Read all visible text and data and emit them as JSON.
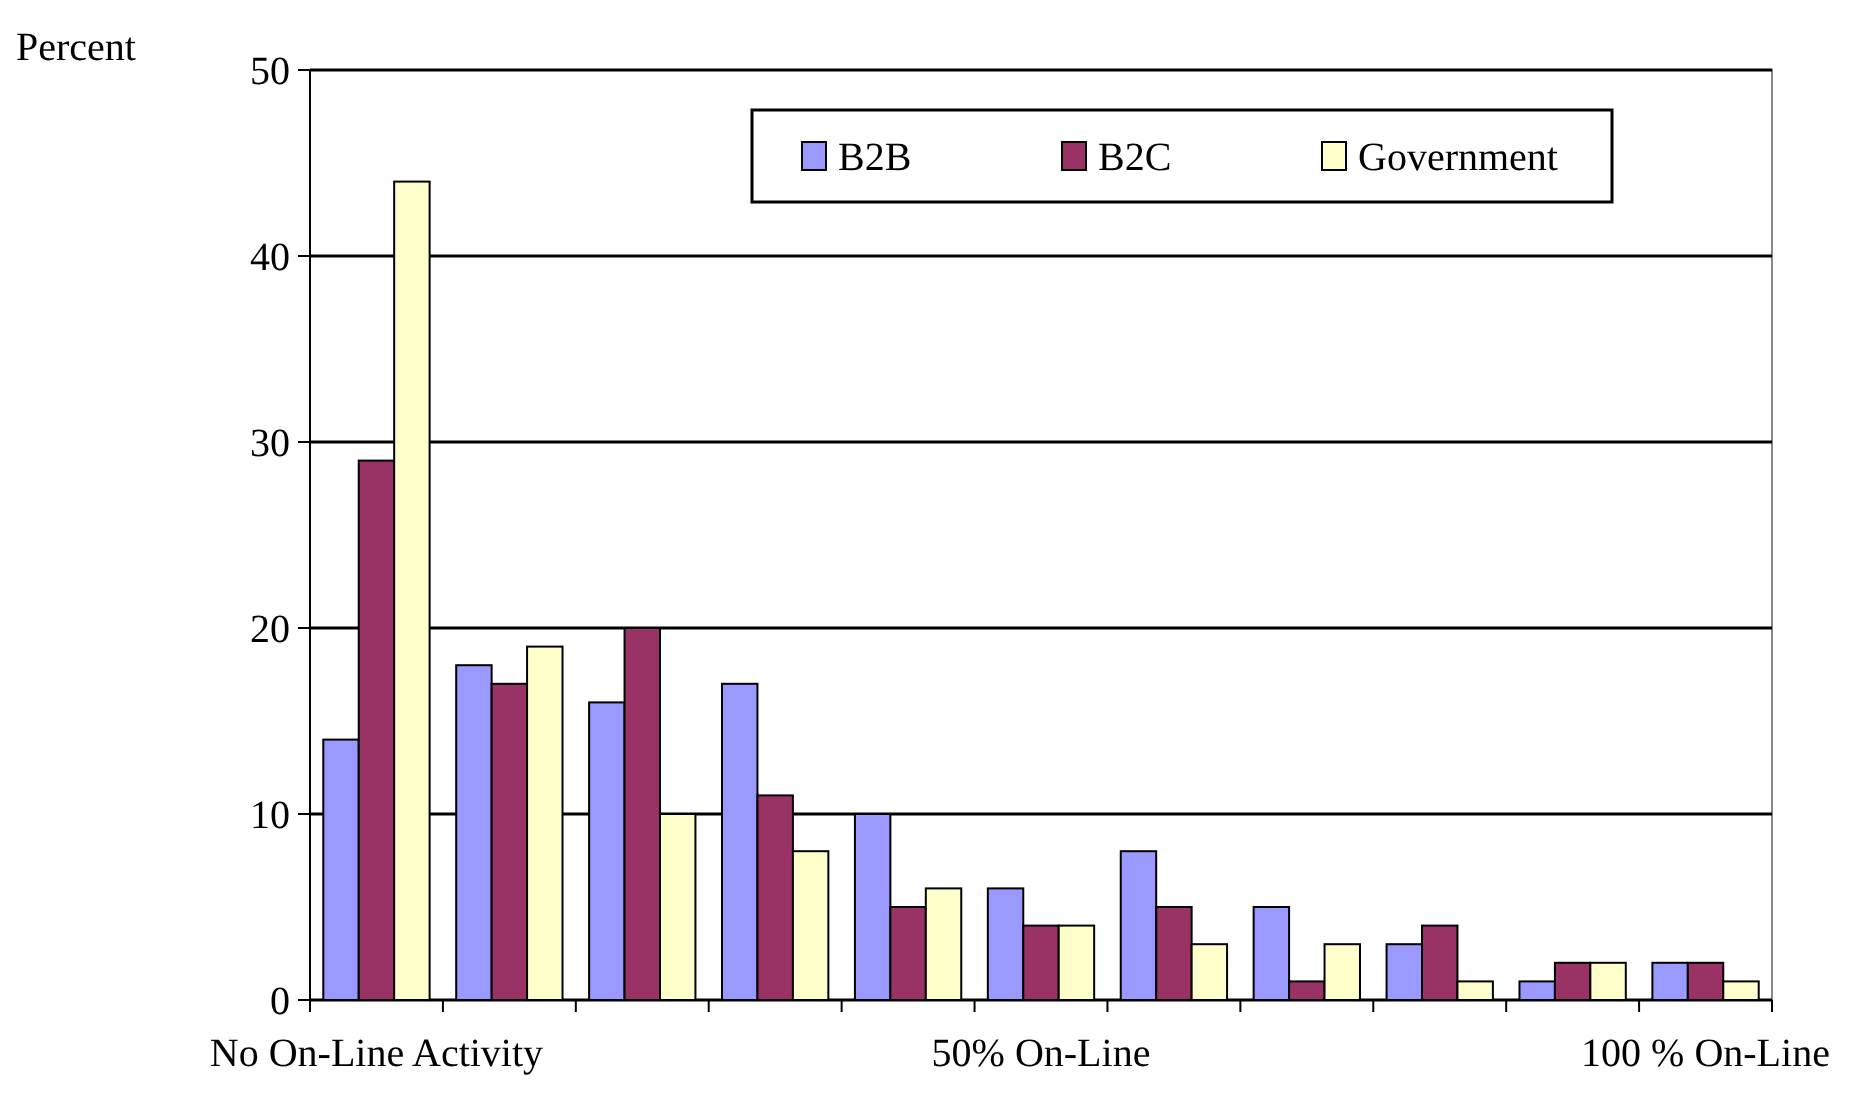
{
  "chart_data": {
    "type": "bar",
    "ylabel": "Percent",
    "categories": [
      "No On-Line Activity",
      null,
      null,
      null,
      null,
      "50% On-Line",
      null,
      null,
      null,
      null,
      "100 % On-Line"
    ],
    "series": [
      {
        "name": "B2B",
        "color": "#9999ff",
        "values": [
          14,
          18,
          16,
          17,
          10,
          6,
          8,
          5,
          3,
          1,
          2
        ]
      },
      {
        "name": "B2C",
        "color": "#993366",
        "values": [
          29,
          17,
          20,
          11,
          5,
          4,
          5,
          1,
          4,
          2,
          2
        ]
      },
      {
        "name": "Government",
        "color": "#ffffcc",
        "values": [
          44,
          19,
          10,
          8,
          6,
          4,
          3,
          3,
          1,
          2,
          1
        ]
      }
    ],
    "ylim": [
      0,
      50
    ],
    "yticks": [
      0,
      10,
      20,
      30,
      40,
      50
    ],
    "grid": "y",
    "legend": "top right"
  }
}
